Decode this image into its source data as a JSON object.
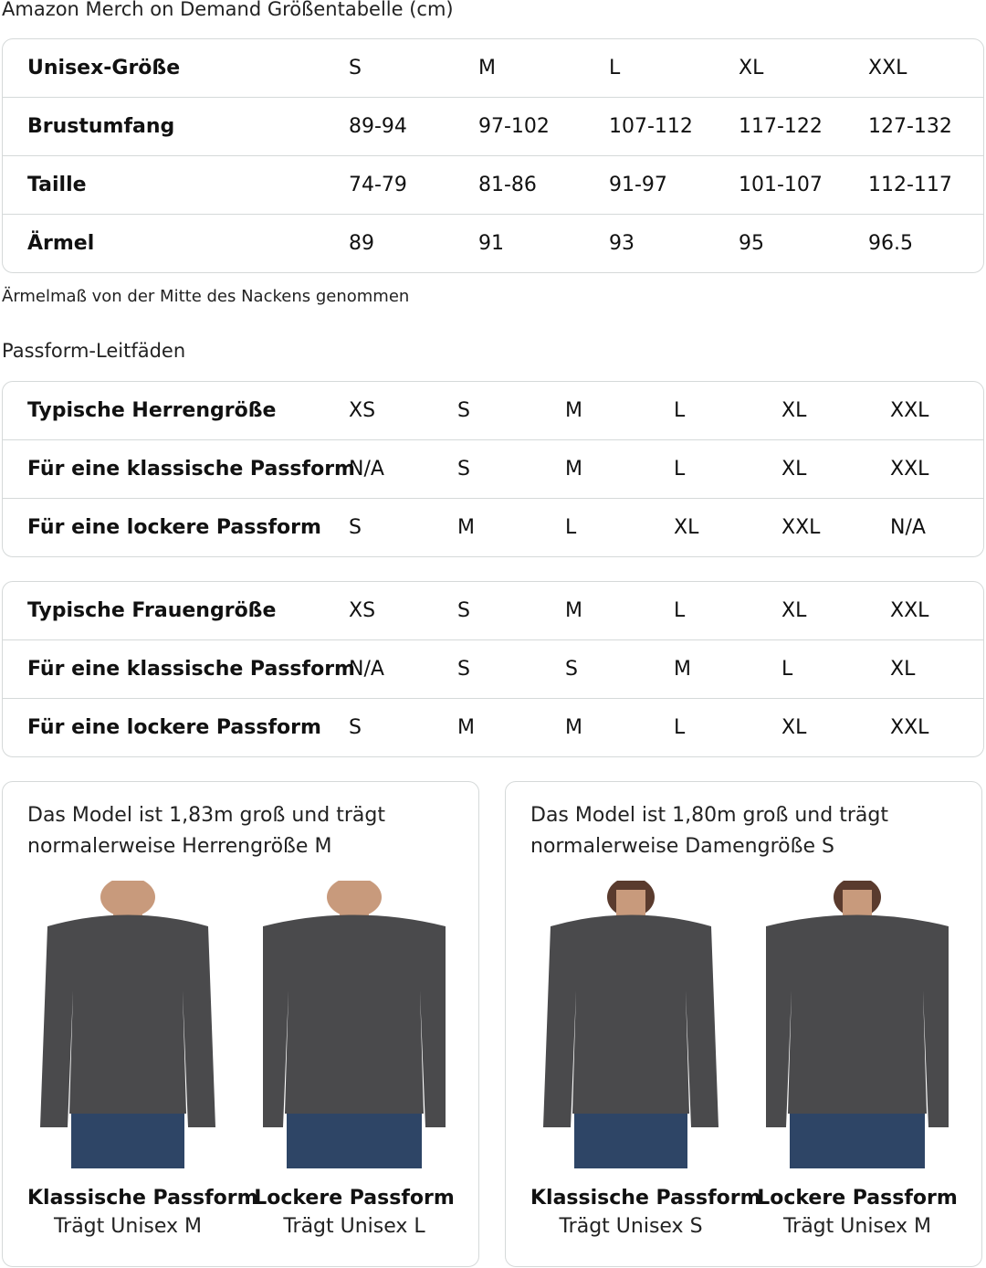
{
  "title": "Amazon Merch on Demand Größentabelle (cm)",
  "size_table": {
    "rows": [
      [
        "Unisex-Größe",
        "S",
        "M",
        "L",
        "XL",
        "XXL"
      ],
      [
        "Brustumfang",
        "89-94",
        "97-102",
        "107-112",
        "117-122",
        "127-132"
      ],
      [
        "Taille",
        "74-79",
        "81-86",
        "91-97",
        "101-107",
        "112-117"
      ],
      [
        "Ärmel",
        "89",
        "91",
        "93",
        "95",
        "96.5"
      ]
    ]
  },
  "sleeve_note": "Ärmelmaß von der Mitte des Nackens genommen",
  "fit_heading": "Passform-Leitfäden",
  "men_table": {
    "rows": [
      [
        "Typische Herrengröße",
        "XS",
        "S",
        "M",
        "L",
        "XL",
        "XXL"
      ],
      [
        "Für eine klassische Passform",
        "N/A",
        "S",
        "M",
        "L",
        "XL",
        "XXL"
      ],
      [
        "Für eine lockere Passform",
        "S",
        "M",
        "L",
        "XL",
        "XXL",
        "N/A"
      ]
    ]
  },
  "women_table": {
    "rows": [
      [
        "Typische Frauengröße",
        "XS",
        "S",
        "M",
        "L",
        "XL",
        "XXL"
      ],
      [
        "Für eine klassische Passform",
        "N/A",
        "S",
        "S",
        "M",
        "L",
        "XL"
      ],
      [
        "Für eine lockere Passform",
        "S",
        "M",
        "M",
        "L",
        "XL",
        "XXL"
      ]
    ]
  },
  "cards": [
    {
      "caption": "Das Model ist 1,83m groß und trägt normalerweise Herrengröße M",
      "figures": [
        {
          "name": "Klassische Passform",
          "wears": "Trägt Unisex M"
        },
        {
          "name": "Lockere Passform",
          "wears": "Trägt Unisex L"
        }
      ]
    },
    {
      "caption": "Das Model ist 1,80m groß und trägt normalerweise Damengröße S",
      "figures": [
        {
          "name": "Klassische Passform",
          "wears": "Trägt Unisex S"
        },
        {
          "name": "Lockere Passform",
          "wears": "Trägt Unisex M"
        }
      ]
    }
  ],
  "colors": {
    "border": "#d5d9d9",
    "sweatshirt": "#4a4a4c",
    "jeans": "#2e4566",
    "skin": "#c89a7c"
  }
}
